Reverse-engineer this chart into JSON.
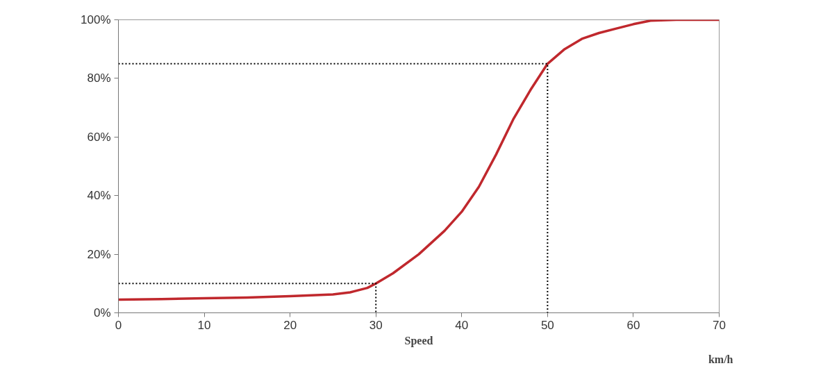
{
  "chart_data": {
    "type": "line",
    "xlabel": "Speed",
    "annotations": [
      "km/h"
    ],
    "xlim": [
      0,
      70
    ],
    "xticks": [
      0,
      10,
      20,
      30,
      40,
      50,
      60,
      70
    ],
    "ylim": [
      0,
      100
    ],
    "yticks": [
      {
        "value": 0,
        "label": "0%"
      },
      {
        "value": 20,
        "label": "20%"
      },
      {
        "value": 40,
        "label": "40%"
      },
      {
        "value": 60,
        "label": "60%"
      },
      {
        "value": 80,
        "label": "80%"
      },
      {
        "value": 100,
        "label": "100%"
      }
    ],
    "grid": false,
    "marker": "none",
    "series": [
      {
        "color": "#c0282d",
        "line_style": "solid",
        "x": [
          0,
          5,
          10,
          15,
          20,
          25,
          27,
          29,
          30,
          32,
          35,
          38,
          40,
          42,
          44,
          46,
          48,
          50,
          52,
          54,
          56,
          58,
          60,
          62,
          65,
          70
        ],
        "values": [
          4.5,
          4.7,
          5,
          5.2,
          5.7,
          6.3,
          7,
          8.5,
          10,
          13.5,
          20,
          28,
          34.5,
          43,
          54,
          66,
          76,
          85,
          90,
          93.5,
          95.5,
          97,
          98.5,
          99.7,
          100,
          100
        ]
      },
      {
        "color": "#000000",
        "line_style": "dotted",
        "x": [
          0,
          30,
          30
        ],
        "values": [
          10,
          10,
          0
        ]
      },
      {
        "color": "#000000",
        "line_style": "dotted",
        "x": [
          0,
          50,
          50
        ],
        "values": [
          85,
          85,
          0
        ]
      }
    ]
  }
}
